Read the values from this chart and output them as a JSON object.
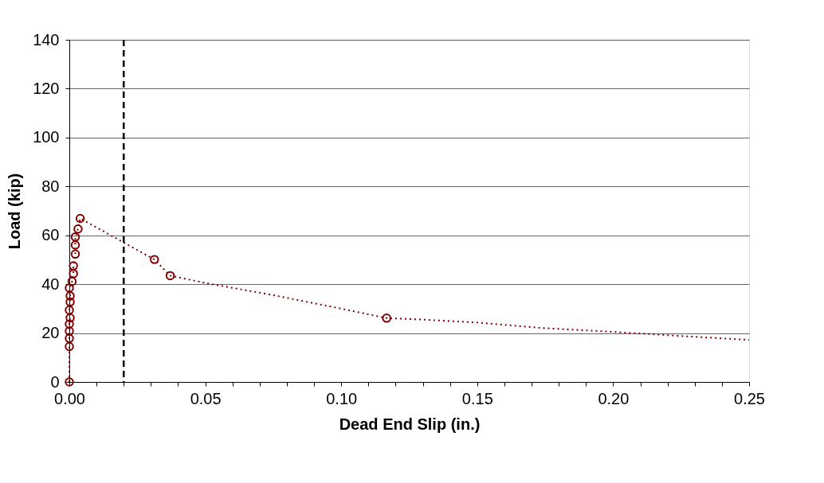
{
  "chart_data": {
    "type": "line",
    "xlabel": "Dead End Slip (in.)",
    "ylabel": "Load (kip)",
    "xlim": [
      0,
      0.25
    ],
    "ylim": [
      0,
      140
    ],
    "xticks": [
      {
        "value": 0,
        "label": "0.00"
      },
      {
        "value": 0.01,
        "label": null
      },
      {
        "value": 0.02,
        "label": null
      },
      {
        "value": 0.03,
        "label": null
      },
      {
        "value": 0.04,
        "label": null
      },
      {
        "value": 0.05,
        "label": "0.05"
      },
      {
        "value": 0.06,
        "label": null
      },
      {
        "value": 0.07,
        "label": null
      },
      {
        "value": 0.08,
        "label": null
      },
      {
        "value": 0.09,
        "label": null
      },
      {
        "value": 0.1,
        "label": "0.10"
      },
      {
        "value": 0.11,
        "label": null
      },
      {
        "value": 0.12,
        "label": null
      },
      {
        "value": 0.13,
        "label": null
      },
      {
        "value": 0.14,
        "label": null
      },
      {
        "value": 0.15,
        "label": "0.15"
      },
      {
        "value": 0.16,
        "label": null
      },
      {
        "value": 0.17,
        "label": null
      },
      {
        "value": 0.18,
        "label": null
      },
      {
        "value": 0.19,
        "label": null
      },
      {
        "value": 0.2,
        "label": "0.20"
      },
      {
        "value": 0.21,
        "label": null
      },
      {
        "value": 0.22,
        "label": null
      },
      {
        "value": 0.23,
        "label": null
      },
      {
        "value": 0.24,
        "label": null
      },
      {
        "value": 0.25,
        "label": "0.25"
      }
    ],
    "yticks": [
      0,
      20,
      40,
      60,
      80,
      100,
      120,
      140
    ],
    "grid": "y",
    "ref_lines": [
      {
        "axis": "x",
        "value": 0.02,
        "color": "#000000",
        "line_style": "dashed"
      }
    ],
    "series": [
      {
        "marker": "none",
        "line_style": "dotted",
        "color": "#800000",
        "x": [
          0,
          0,
          0,
          0,
          0,
          0.0003,
          0,
          0.0003,
          0.0003,
          0,
          0.001,
          0.0015,
          0.0015,
          0.0022,
          0.0022,
          0.0022,
          0.0032,
          0.004,
          0.0313,
          0.0371,
          0.05,
          0.075,
          0.1,
          0.1167,
          0.13,
          0.15,
          0.175,
          0.2,
          0.225,
          0.25
        ],
        "values": [
          0,
          14.5,
          17.8,
          20.8,
          23.7,
          26.2,
          29.4,
          32.7,
          35.2,
          38.4,
          41.1,
          44.3,
          47.5,
          52.3,
          56.0,
          59.3,
          62.6,
          66.9,
          50.1,
          43.5,
          40.5,
          35.5,
          30,
          26.1,
          25.5,
          24.3,
          22,
          20.5,
          18.8,
          17.2
        ]
      },
      {
        "type": "scatter",
        "marker": "circle",
        "color": "#800000",
        "x": [
          0,
          0,
          0,
          0,
          0,
          0.0003,
          0,
          0.0003,
          0.0003,
          0,
          0.001,
          0.0015,
          0.0015,
          0.0022,
          0.0022,
          0.0022,
          0.0032,
          0.004,
          0.0313,
          0.0371,
          0.1167
        ],
        "values": [
          0,
          14.5,
          17.8,
          20.8,
          23.7,
          26.2,
          29.4,
          32.7,
          35.2,
          38.4,
          41.1,
          44.3,
          47.5,
          52.3,
          56.0,
          59.3,
          62.6,
          66.9,
          50.1,
          43.5,
          26.1
        ]
      }
    ]
  }
}
